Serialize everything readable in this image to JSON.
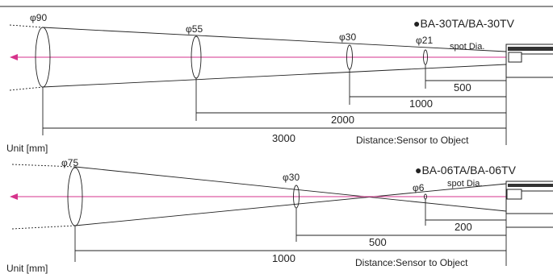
{
  "colors": {
    "beam": "#d6338c",
    "ink": "#222222"
  },
  "diagrams": [
    {
      "model": "●BA-30TA/BA-30TV",
      "spot_label": "spot Dia.",
      "unit_label": "Unit [mm]",
      "distance_caption": "Distance:Sensor to Object",
      "spots": [
        {
          "diameter": "φ90"
        },
        {
          "diameter": "φ55"
        },
        {
          "diameter": "φ30"
        },
        {
          "diameter": "φ21"
        }
      ],
      "distances": [
        "500",
        "1000",
        "2000",
        "3000"
      ]
    },
    {
      "model": "●BA-06TA/BA-06TV",
      "spot_label": "spot Dia.",
      "unit_label": "Unit [mm]",
      "distance_caption": "Distance:Sensor to Object",
      "spots": [
        {
          "diameter": "φ75"
        },
        {
          "diameter": "φ30"
        },
        {
          "diameter": "φ6"
        }
      ],
      "distances": [
        "200",
        "500",
        "1000"
      ]
    }
  ]
}
